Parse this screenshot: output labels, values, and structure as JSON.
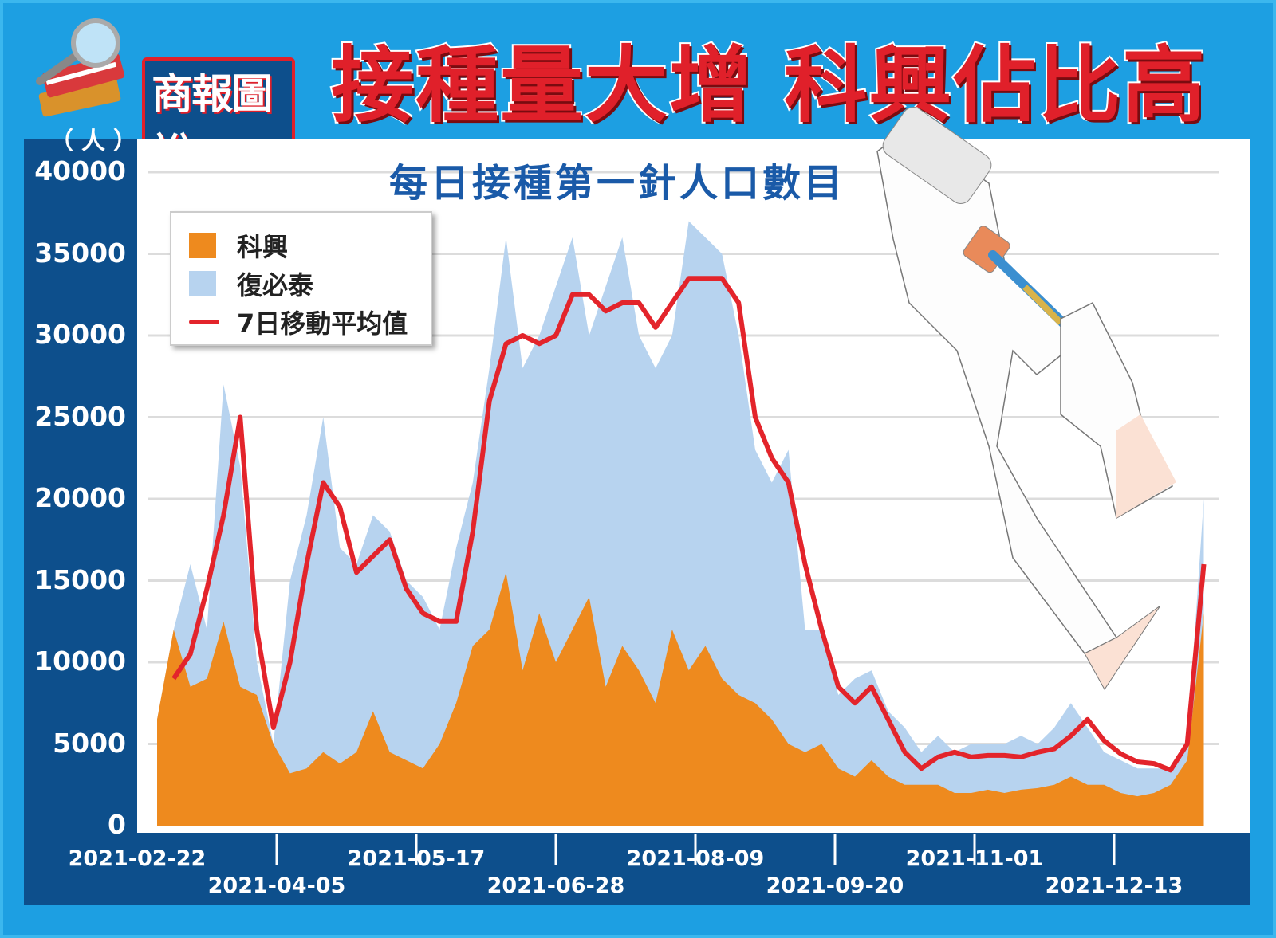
{
  "header": {
    "logo_text": "商報圖說",
    "headline": "接種量大增 科興佔比高"
  },
  "colors": {
    "background": "#1d9fe2",
    "axis_panel": "#0d4f8c",
    "sinovac": "#ee8a1e",
    "biontech": "#b7d3ef",
    "moving_average": "#e3242b",
    "headline": "#e0202a",
    "subtitle": "#1a5aa8"
  },
  "chart_data": {
    "type": "area",
    "stacked": true,
    "title": "每日接種第一針人口數目",
    "ylabel": "（人）",
    "xlabel": "",
    "ylim": [
      0,
      40000
    ],
    "yticks": [
      "0",
      "5000",
      "10000",
      "15000",
      "20000",
      "25000",
      "30000",
      "35000",
      "40000"
    ],
    "xticks": [
      "2021-02-22",
      "2021-04-05",
      "2021-05-17",
      "2021-06-28",
      "2021-08-09",
      "2021-09-20",
      "2021-11-01",
      "2021-12-13"
    ],
    "grid": true,
    "legend_position": "top-left",
    "legend": [
      "科興",
      "復必泰",
      "7日移動平均值"
    ],
    "x": [
      "2021-02-28",
      "2021-03-05",
      "2021-03-10",
      "2021-03-15",
      "2021-03-20",
      "2021-03-25",
      "2021-03-30",
      "2021-04-04",
      "2021-04-09",
      "2021-04-14",
      "2021-04-19",
      "2021-04-24",
      "2021-04-29",
      "2021-05-04",
      "2021-05-09",
      "2021-05-14",
      "2021-05-19",
      "2021-05-24",
      "2021-05-29",
      "2021-06-03",
      "2021-06-08",
      "2021-06-13",
      "2021-06-18",
      "2021-06-23",
      "2021-06-28",
      "2021-07-03",
      "2021-07-08",
      "2021-07-13",
      "2021-07-18",
      "2021-07-23",
      "2021-07-28",
      "2021-08-02",
      "2021-08-07",
      "2021-08-12",
      "2021-08-17",
      "2021-08-22",
      "2021-08-27",
      "2021-09-01",
      "2021-09-06",
      "2021-09-11",
      "2021-09-16",
      "2021-09-21",
      "2021-09-26",
      "2021-10-01",
      "2021-10-06",
      "2021-10-11",
      "2021-10-16",
      "2021-10-21",
      "2021-10-26",
      "2021-10-31",
      "2021-11-05",
      "2021-11-10",
      "2021-11-15",
      "2021-11-20",
      "2021-11-25",
      "2021-11-30",
      "2021-12-05",
      "2021-12-10",
      "2021-12-15",
      "2021-12-20",
      "2021-12-25",
      "2021-12-30",
      "2022-01-04",
      "2022-01-09"
    ],
    "series": [
      {
        "name": "科興",
        "values": [
          6500,
          12000,
          8500,
          9000,
          12500,
          8500,
          8000,
          5000,
          3200,
          3500,
          4500,
          3800,
          4500,
          7000,
          4500,
          4000,
          3500,
          5000,
          7500,
          11000,
          12000,
          15500,
          9500,
          13000,
          10000,
          12000,
          14000,
          8500,
          11000,
          9500,
          7500,
          12000,
          9500,
          11000,
          9000,
          8000,
          7500,
          6500,
          5000,
          4500,
          5000,
          3500,
          3000,
          4000,
          3000,
          2500,
          2500,
          2500,
          2000,
          2000,
          2200,
          2000,
          2200,
          2300,
          2500,
          3000,
          2500,
          2500,
          2000,
          1800,
          2000,
          2500,
          4000,
          13000
        ]
      },
      {
        "name": "復必泰",
        "values": [
          0,
          0,
          7500,
          3000,
          14500,
          13500,
          2000,
          0,
          11800,
          15500,
          20500,
          13200,
          11500,
          12000,
          13500,
          11000,
          10500,
          7000,
          9500,
          10000,
          16000,
          20500,
          18500,
          17000,
          23000,
          24000,
          16000,
          24500,
          25000,
          20500,
          20500,
          18000,
          27500,
          25000,
          26000,
          22000,
          15500,
          14500,
          18000,
          7500,
          7000,
          4500,
          6000,
          5500,
          4000,
          3500,
          2000,
          3000,
          2500,
          3000,
          2800,
          3000,
          3300,
          2700,
          3500,
          4500,
          3500,
          2000,
          2000,
          1700,
          1500,
          1000,
          1000,
          7000
        ]
      }
    ],
    "line_series": {
      "name": "7日移動平均值",
      "values": [
        null,
        9000,
        10500,
        14500,
        19000,
        25000,
        12000,
        6000,
        10000,
        16000,
        21000,
        19500,
        15500,
        16500,
        17500,
        14500,
        13000,
        12500,
        12500,
        18000,
        26000,
        29500,
        30000,
        29500,
        30000,
        32500,
        32500,
        31500,
        32000,
        32000,
        30500,
        32000,
        33500,
        33500,
        33500,
        32000,
        25000,
        22500,
        21000,
        16000,
        12000,
        8500,
        7500,
        8500,
        6500,
        4500,
        3500,
        4200,
        4500,
        4200,
        4300,
        4300,
        4200,
        4500,
        4700,
        5500,
        6500,
        5200,
        4400,
        3900,
        3800,
        3400,
        5000,
        16000
      ]
    }
  }
}
